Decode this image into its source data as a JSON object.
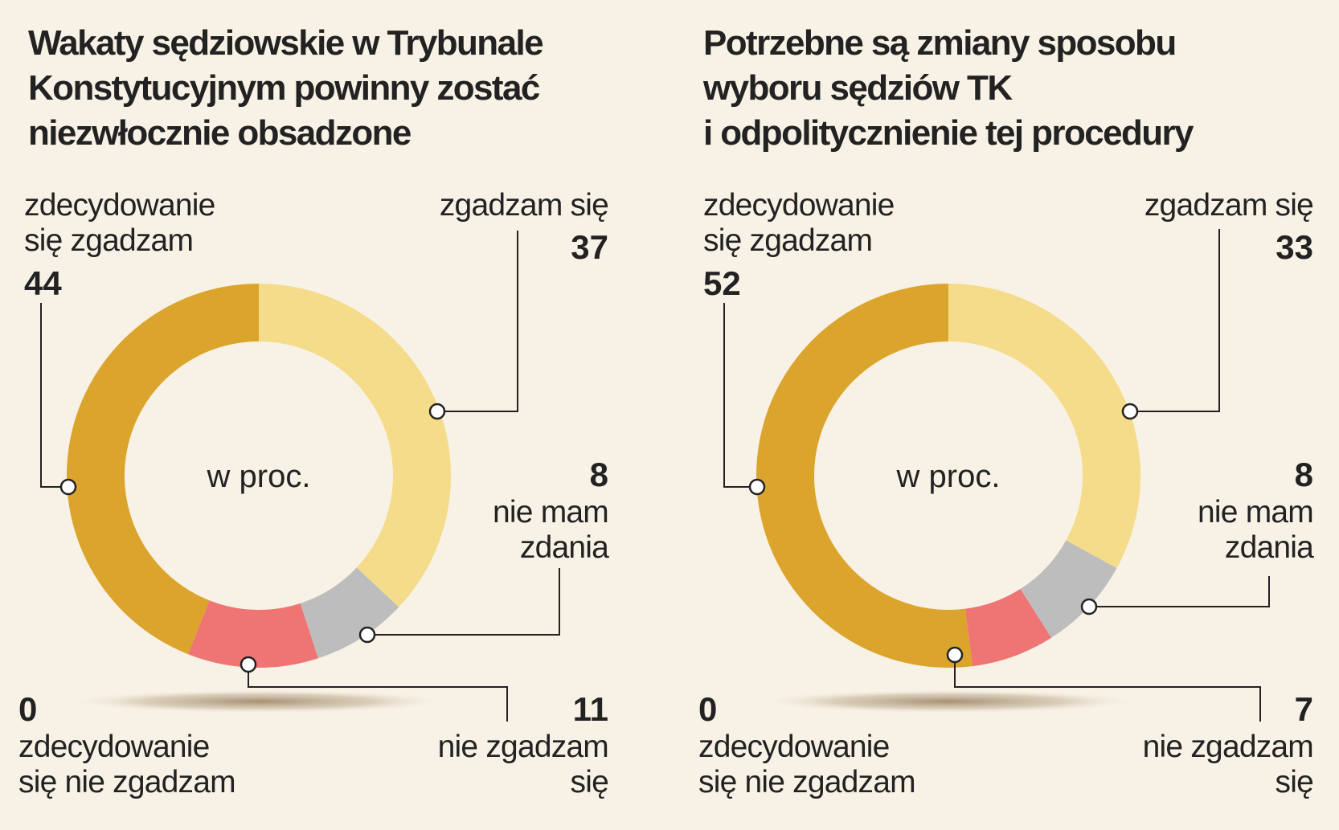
{
  "chart_data": [
    {
      "type": "pie",
      "variant": "donut",
      "title_lines": [
        "Wakaty sędziowskie w Trybunale",
        "Konstytucyjnym powinny zostać",
        "niezwłocznie obsadzone"
      ],
      "center_label": "w proc.",
      "slices": [
        {
          "label_lines": [
            "zgadzam się"
          ],
          "value": 37,
          "color": "#f4dc8a"
        },
        {
          "label_lines": [
            "nie mam",
            "zdania"
          ],
          "value": 8,
          "color": "#bdbdbd"
        },
        {
          "label_lines": [
            "nie zgadzam",
            "się"
          ],
          "value": 11,
          "color": "#ef7474"
        },
        {
          "label_lines": [
            "zdecydowanie",
            "się nie zgadzam"
          ],
          "value": 0,
          "color": "#c0392b"
        },
        {
          "label_lines": [
            "zdecydowanie",
            "się zgadzam"
          ],
          "value": 44,
          "color": "#dba42c"
        }
      ]
    },
    {
      "type": "pie",
      "variant": "donut",
      "title_lines": [
        "Potrzebne są zmiany sposobu",
        "wyboru sędziów TK",
        "i odpolitycznienie tej procedury"
      ],
      "center_label": "w proc.",
      "slices": [
        {
          "label_lines": [
            "zgadzam się"
          ],
          "value": 33,
          "color": "#f4dc8a"
        },
        {
          "label_lines": [
            "nie mam",
            "zdania"
          ],
          "value": 8,
          "color": "#bdbdbd"
        },
        {
          "label_lines": [
            "nie zgadzam",
            "się"
          ],
          "value": 7,
          "color": "#ef7474"
        },
        {
          "label_lines": [
            "zdecydowanie",
            "się nie zgadzam"
          ],
          "value": 0,
          "color": "#c0392b"
        },
        {
          "label_lines": [
            "zdecydowanie",
            "się zgadzam"
          ],
          "value": 52,
          "color": "#dba42c"
        }
      ]
    }
  ]
}
